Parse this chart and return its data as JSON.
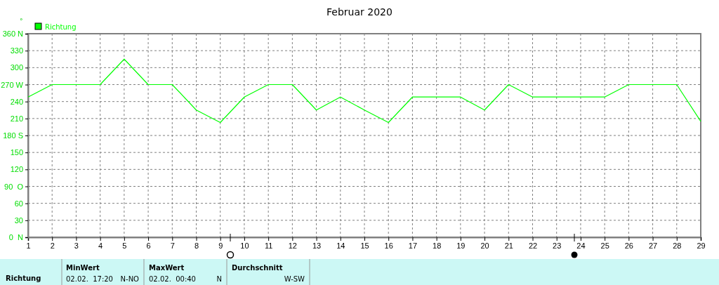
{
  "chart_data": {
    "type": "line",
    "title": "Februar 2020",
    "ylabel": "°",
    "x": [
      1,
      2,
      3,
      4,
      5,
      6,
      7,
      8,
      9,
      10,
      11,
      12,
      13,
      14,
      15,
      16,
      17,
      18,
      19,
      20,
      21,
      22,
      23,
      24,
      25,
      26,
      27,
      28,
      29
    ],
    "series": [
      {
        "name": "Richtung",
        "color": "#00ff00",
        "values": [
          248,
          270,
          270,
          270,
          315,
          270,
          270,
          225,
          203,
          248,
          270,
          270,
          225,
          248,
          225,
          203,
          248,
          248,
          248,
          225,
          270,
          248,
          248,
          248,
          248,
          270,
          270,
          270,
          205
        ]
      }
    ],
    "xlim": [
      1,
      29
    ],
    "xticks": [
      1,
      2,
      3,
      4,
      5,
      6,
      7,
      8,
      9,
      10,
      11,
      12,
      13,
      14,
      15,
      16,
      17,
      18,
      19,
      20,
      21,
      22,
      23,
      24,
      25,
      26,
      27,
      28,
      29
    ],
    "ylim": [
      0,
      360
    ],
    "yticks": [
      {
        "value": 0,
        "label": "0  N"
      },
      30,
      60,
      {
        "value": 90,
        "label": "90  O"
      },
      120,
      150,
      {
        "value": 180,
        "label": "180 S"
      },
      210,
      240,
      {
        "value": 270,
        "label": "270 W"
      },
      300,
      330,
      {
        "value": 360,
        "label": "360 N"
      }
    ],
    "grid": true,
    "legend": "top left",
    "marker": "none",
    "line_style": "solid",
    "annotations": [
      "Richtung",
      "MinWert",
      "02.02.  17:20",
      "N-NO",
      "MaxWert",
      "02.02.  00:40",
      "N",
      "Durchschnitt",
      "W-SW"
    ]
  }
}
